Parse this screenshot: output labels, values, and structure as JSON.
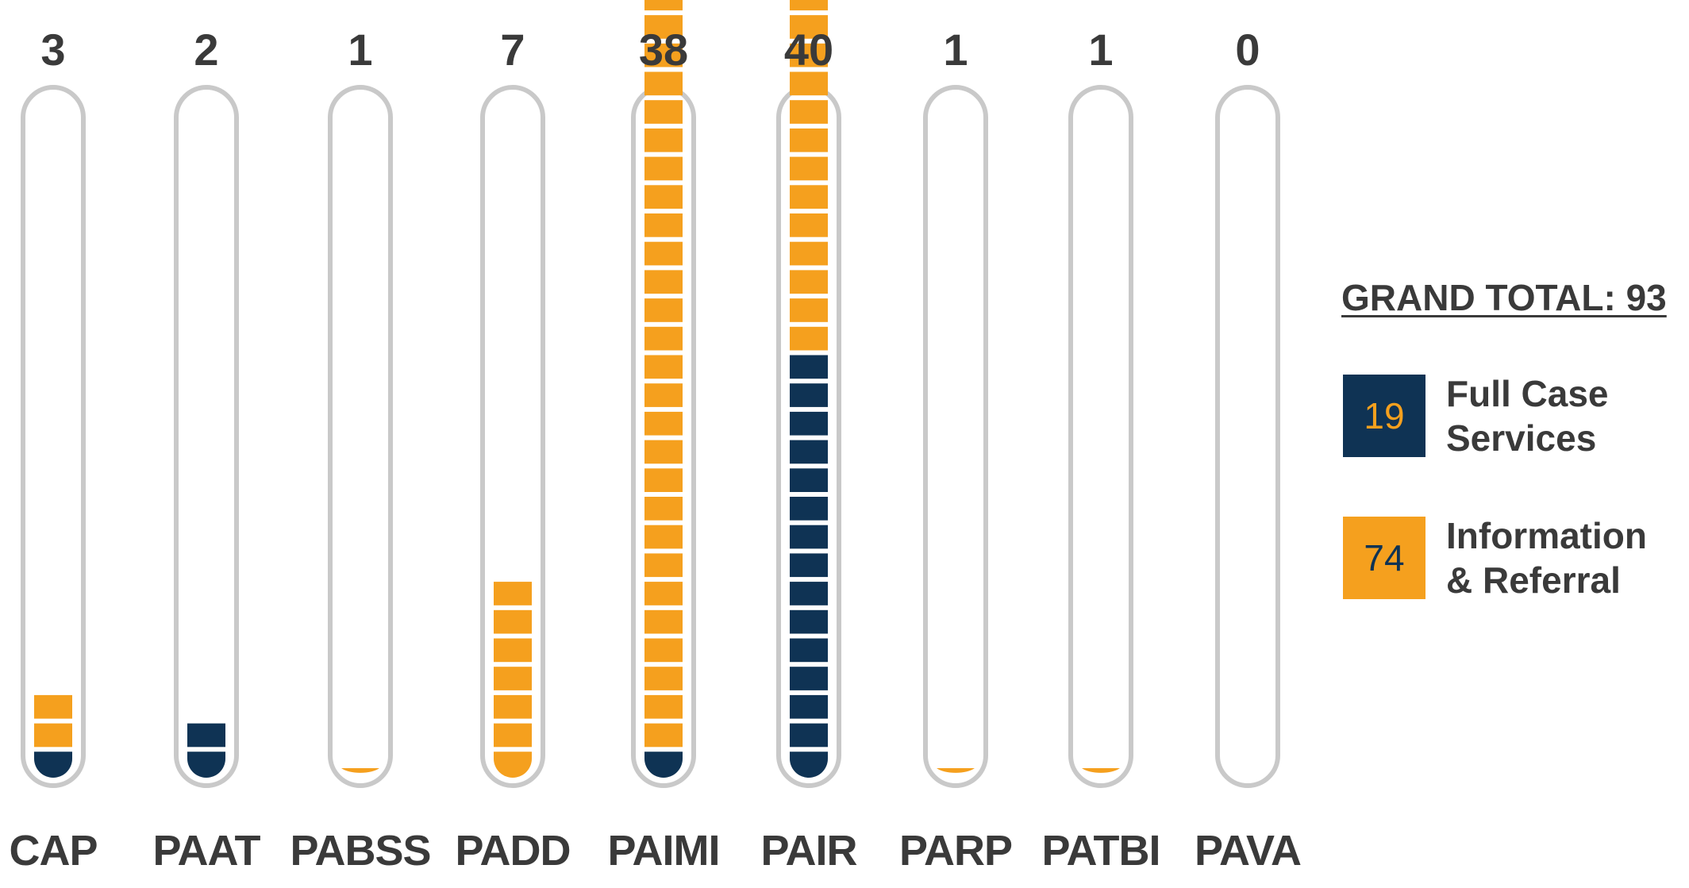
{
  "chart_data": {
    "type": "bar",
    "categories": [
      "CAP",
      "PAAT",
      "PABSS",
      "PADD",
      "PAIMI",
      "PAIR",
      "PARP",
      "PATBI",
      "PAVA"
    ],
    "totals": [
      3,
      2,
      1,
      7,
      38,
      40,
      1,
      1,
      0
    ],
    "series": [
      {
        "name": "Full Case Services",
        "values": [
          1,
          2,
          0,
          0,
          1,
          15,
          0,
          0,
          0
        ]
      },
      {
        "name": "Information & Referral",
        "values": [
          2,
          0,
          1,
          7,
          37,
          25,
          1,
          1,
          0
        ]
      }
    ],
    "legend": {
      "grand_total_label": "GRAND TOTAL: 93",
      "items": [
        {
          "count": "19",
          "label": "Full Case\nServices"
        },
        {
          "count": "74",
          "label": "Information\n& Referral"
        }
      ]
    },
    "legend_position": "right"
  },
  "colors": {
    "full_case": "#0f3354",
    "info_referral": "#f5a01e",
    "tube_outline": "#c9c9c9",
    "text": "#3a3a3a"
  }
}
